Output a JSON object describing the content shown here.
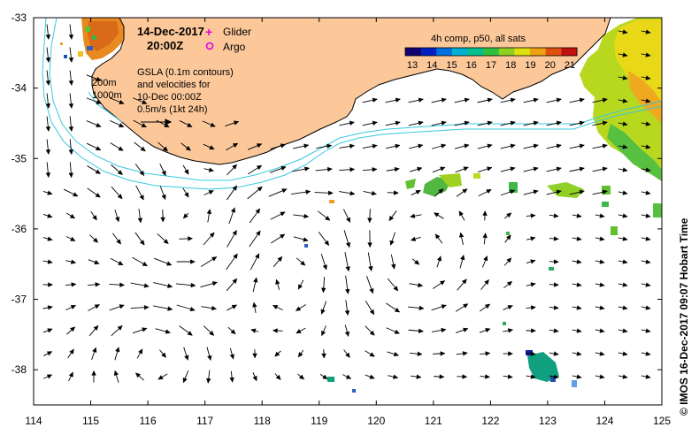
{
  "title": {
    "date": "14-Dec-2017",
    "time": "20:00Z"
  },
  "legend": {
    "glider_symbol": "+",
    "glider_label": "Glider",
    "argo_symbol": "○",
    "argo_label": "Argo",
    "marker_color": "#e000e0"
  },
  "depth_labels": [
    "200m",
    "1000m"
  ],
  "annotation": {
    "lines": [
      "GSLA (0.1m contours)",
      "and velocities for",
      "10-Dec 00:00Z",
      "0.5m/s (1kt 24h)"
    ]
  },
  "colorbar": {
    "title": "4h comp, p50, all sats",
    "ticks": [
      "13",
      "14",
      "15",
      "16",
      "17",
      "18",
      "19",
      "20",
      "21"
    ],
    "colors": [
      "#100070",
      "#0020c0",
      "#0070e0",
      "#00b0d0",
      "#00c090",
      "#30c040",
      "#90d020",
      "#e0e010",
      "#f0a010",
      "#e05010",
      "#c01010"
    ]
  },
  "axes": {
    "lon_ticks": [
      "114",
      "115",
      "116",
      "117",
      "118",
      "119",
      "120",
      "121",
      "122",
      "123",
      "124",
      "125"
    ],
    "lat_ticks": [
      "-33",
      "-34",
      "-35",
      "-36",
      "-37",
      "-38"
    ],
    "lon_range": [
      114,
      125
    ],
    "lat_range": [
      -38.5,
      -33
    ]
  },
  "credit": "© IMOS 16-Dec-2017 09:07 Hobart Time",
  "colors": {
    "land": "#fcc89a",
    "coast": "#000000",
    "isobath": "#38c8e0",
    "arrow": "#000000"
  }
}
